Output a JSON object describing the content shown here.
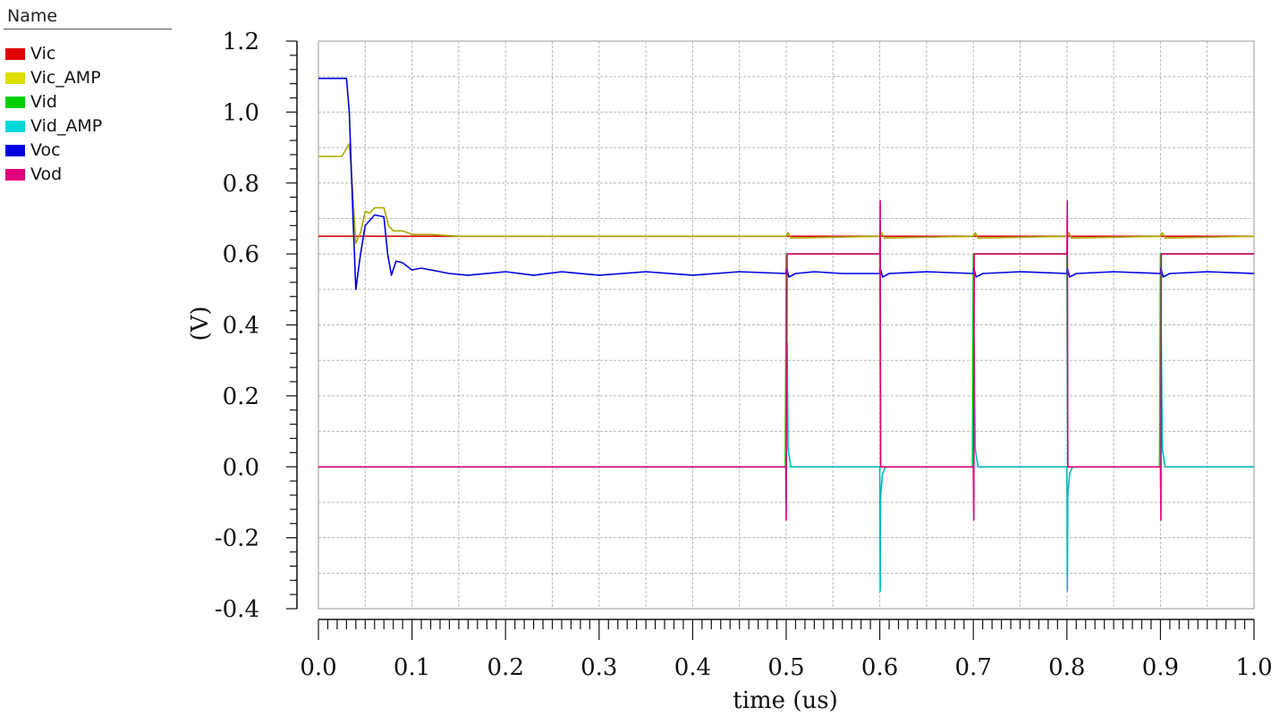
{
  "legend": {
    "header": "Name",
    "items": [
      {
        "label": "Vic",
        "color": "#e00000"
      },
      {
        "label": "Vic_AMP",
        "color": "#dede00"
      },
      {
        "label": "Vid",
        "color": "#00d000"
      },
      {
        "label": "Vid_AMP",
        "color": "#00d8d8"
      },
      {
        "label": "Voc",
        "color": "#0000e0"
      },
      {
        "label": "Vod",
        "color": "#e0007a"
      }
    ]
  },
  "chart_data": {
    "type": "line",
    "xlabel": "time (us)",
    "ylabel": "(V)",
    "xlim": [
      0.0,
      1.0
    ],
    "ylim": [
      -0.4,
      1.2
    ],
    "xticks": [
      "0.0",
      "0.1",
      "0.2",
      "0.3",
      "0.4",
      "0.5",
      "0.6",
      "0.7",
      "0.8",
      "0.9",
      "1.0"
    ],
    "yticks": [
      "1.2",
      "1.0",
      "0.8",
      "0.6",
      "0.4",
      "0.2",
      "0.0",
      "-0.2",
      "-0.4"
    ],
    "grid": true,
    "legend_position": "left",
    "series": [
      {
        "name": "Vic",
        "color": "#e00000",
        "x": [
          0.0,
          1.0
        ],
        "y": [
          0.65,
          0.65
        ]
      },
      {
        "name": "Vic_AMP",
        "color": "#a8a800",
        "x": [
          0.0,
          0.025,
          0.033,
          0.036,
          0.04,
          0.045,
          0.05,
          0.055,
          0.06,
          0.07,
          0.075,
          0.08,
          0.09,
          0.1,
          0.12,
          0.15,
          0.5,
          0.502,
          0.505,
          0.6,
          0.602,
          0.605,
          0.7,
          0.702,
          0.705,
          0.8,
          0.802,
          0.805,
          0.9,
          0.902,
          0.905,
          1.0
        ],
        "y": [
          0.875,
          0.875,
          0.91,
          0.8,
          0.63,
          0.66,
          0.72,
          0.715,
          0.73,
          0.73,
          0.68,
          0.665,
          0.665,
          0.655,
          0.655,
          0.65,
          0.65,
          0.66,
          0.645,
          0.65,
          0.66,
          0.645,
          0.65,
          0.66,
          0.645,
          0.65,
          0.66,
          0.645,
          0.65,
          0.66,
          0.645,
          0.65
        ]
      },
      {
        "name": "Vid",
        "color": "#00d000",
        "x": [
          0.0,
          0.499,
          0.5,
          0.6,
          0.601,
          0.699,
          0.7,
          0.8,
          0.801,
          0.899,
          0.9,
          1.0
        ],
        "y": [
          0.0,
          0.0,
          0.6,
          0.6,
          0.0,
          0.0,
          0.6,
          0.6,
          0.0,
          0.0,
          0.6,
          0.6
        ]
      },
      {
        "name": "Vid_AMP",
        "color": "#00b8b8",
        "x": [
          0.0,
          0.5,
          0.501,
          0.502,
          0.505,
          0.6,
          0.6005,
          0.601,
          0.603,
          0.606,
          0.7,
          0.701,
          0.702,
          0.705,
          0.8,
          0.8005,
          0.801,
          0.803,
          0.806,
          0.9,
          0.901,
          0.902,
          0.905,
          1.0
        ],
        "y": [
          0.0,
          0.0,
          0.35,
          0.05,
          0.0,
          0.0,
          -0.35,
          -0.08,
          -0.02,
          0.0,
          0.0,
          0.35,
          0.05,
          0.0,
          0.0,
          -0.35,
          -0.08,
          -0.02,
          0.0,
          0.0,
          0.35,
          0.05,
          0.0,
          0.0
        ]
      },
      {
        "name": "Voc",
        "color": "#0000e0",
        "x": [
          0.0,
          0.03,
          0.033,
          0.037,
          0.04,
          0.045,
          0.05,
          0.06,
          0.07,
          0.074,
          0.078,
          0.083,
          0.09,
          0.1,
          0.11,
          0.14,
          0.16,
          0.2,
          0.23,
          0.26,
          0.3,
          0.35,
          0.4,
          0.45,
          0.5,
          0.5005,
          0.503,
          0.51,
          0.53,
          0.56,
          0.6,
          0.6005,
          0.603,
          0.61,
          0.65,
          0.7,
          0.7005,
          0.703,
          0.71,
          0.75,
          0.8,
          0.8005,
          0.803,
          0.81,
          0.85,
          0.9,
          0.9005,
          0.903,
          0.91,
          0.95,
          1.0
        ],
        "y": [
          1.095,
          1.095,
          1.0,
          0.7,
          0.5,
          0.6,
          0.68,
          0.71,
          0.705,
          0.6,
          0.54,
          0.58,
          0.575,
          0.555,
          0.56,
          0.545,
          0.54,
          0.55,
          0.54,
          0.55,
          0.54,
          0.55,
          0.54,
          0.55,
          0.545,
          0.56,
          0.535,
          0.545,
          0.55,
          0.545,
          0.545,
          0.56,
          0.535,
          0.545,
          0.55,
          0.545,
          0.56,
          0.535,
          0.545,
          0.55,
          0.545,
          0.56,
          0.535,
          0.545,
          0.55,
          0.545,
          0.56,
          0.535,
          0.545,
          0.55,
          0.545
        ]
      },
      {
        "name": "Vod",
        "color": "#e0007a",
        "x": [
          0.0,
          0.4995,
          0.5,
          0.501,
          0.503,
          0.6,
          0.6005,
          0.601,
          0.603,
          0.7,
          0.7005,
          0.701,
          0.703,
          0.8,
          0.8005,
          0.801,
          0.803,
          0.9,
          0.9005,
          0.901,
          0.903,
          1.0
        ],
        "y": [
          0.0,
          0.0,
          -0.15,
          0.6,
          0.6,
          0.6,
          0.75,
          0.0,
          0.0,
          0.0,
          -0.15,
          0.6,
          0.6,
          0.6,
          0.75,
          0.0,
          0.0,
          0.0,
          -0.15,
          0.6,
          0.6,
          0.6
        ]
      }
    ]
  }
}
